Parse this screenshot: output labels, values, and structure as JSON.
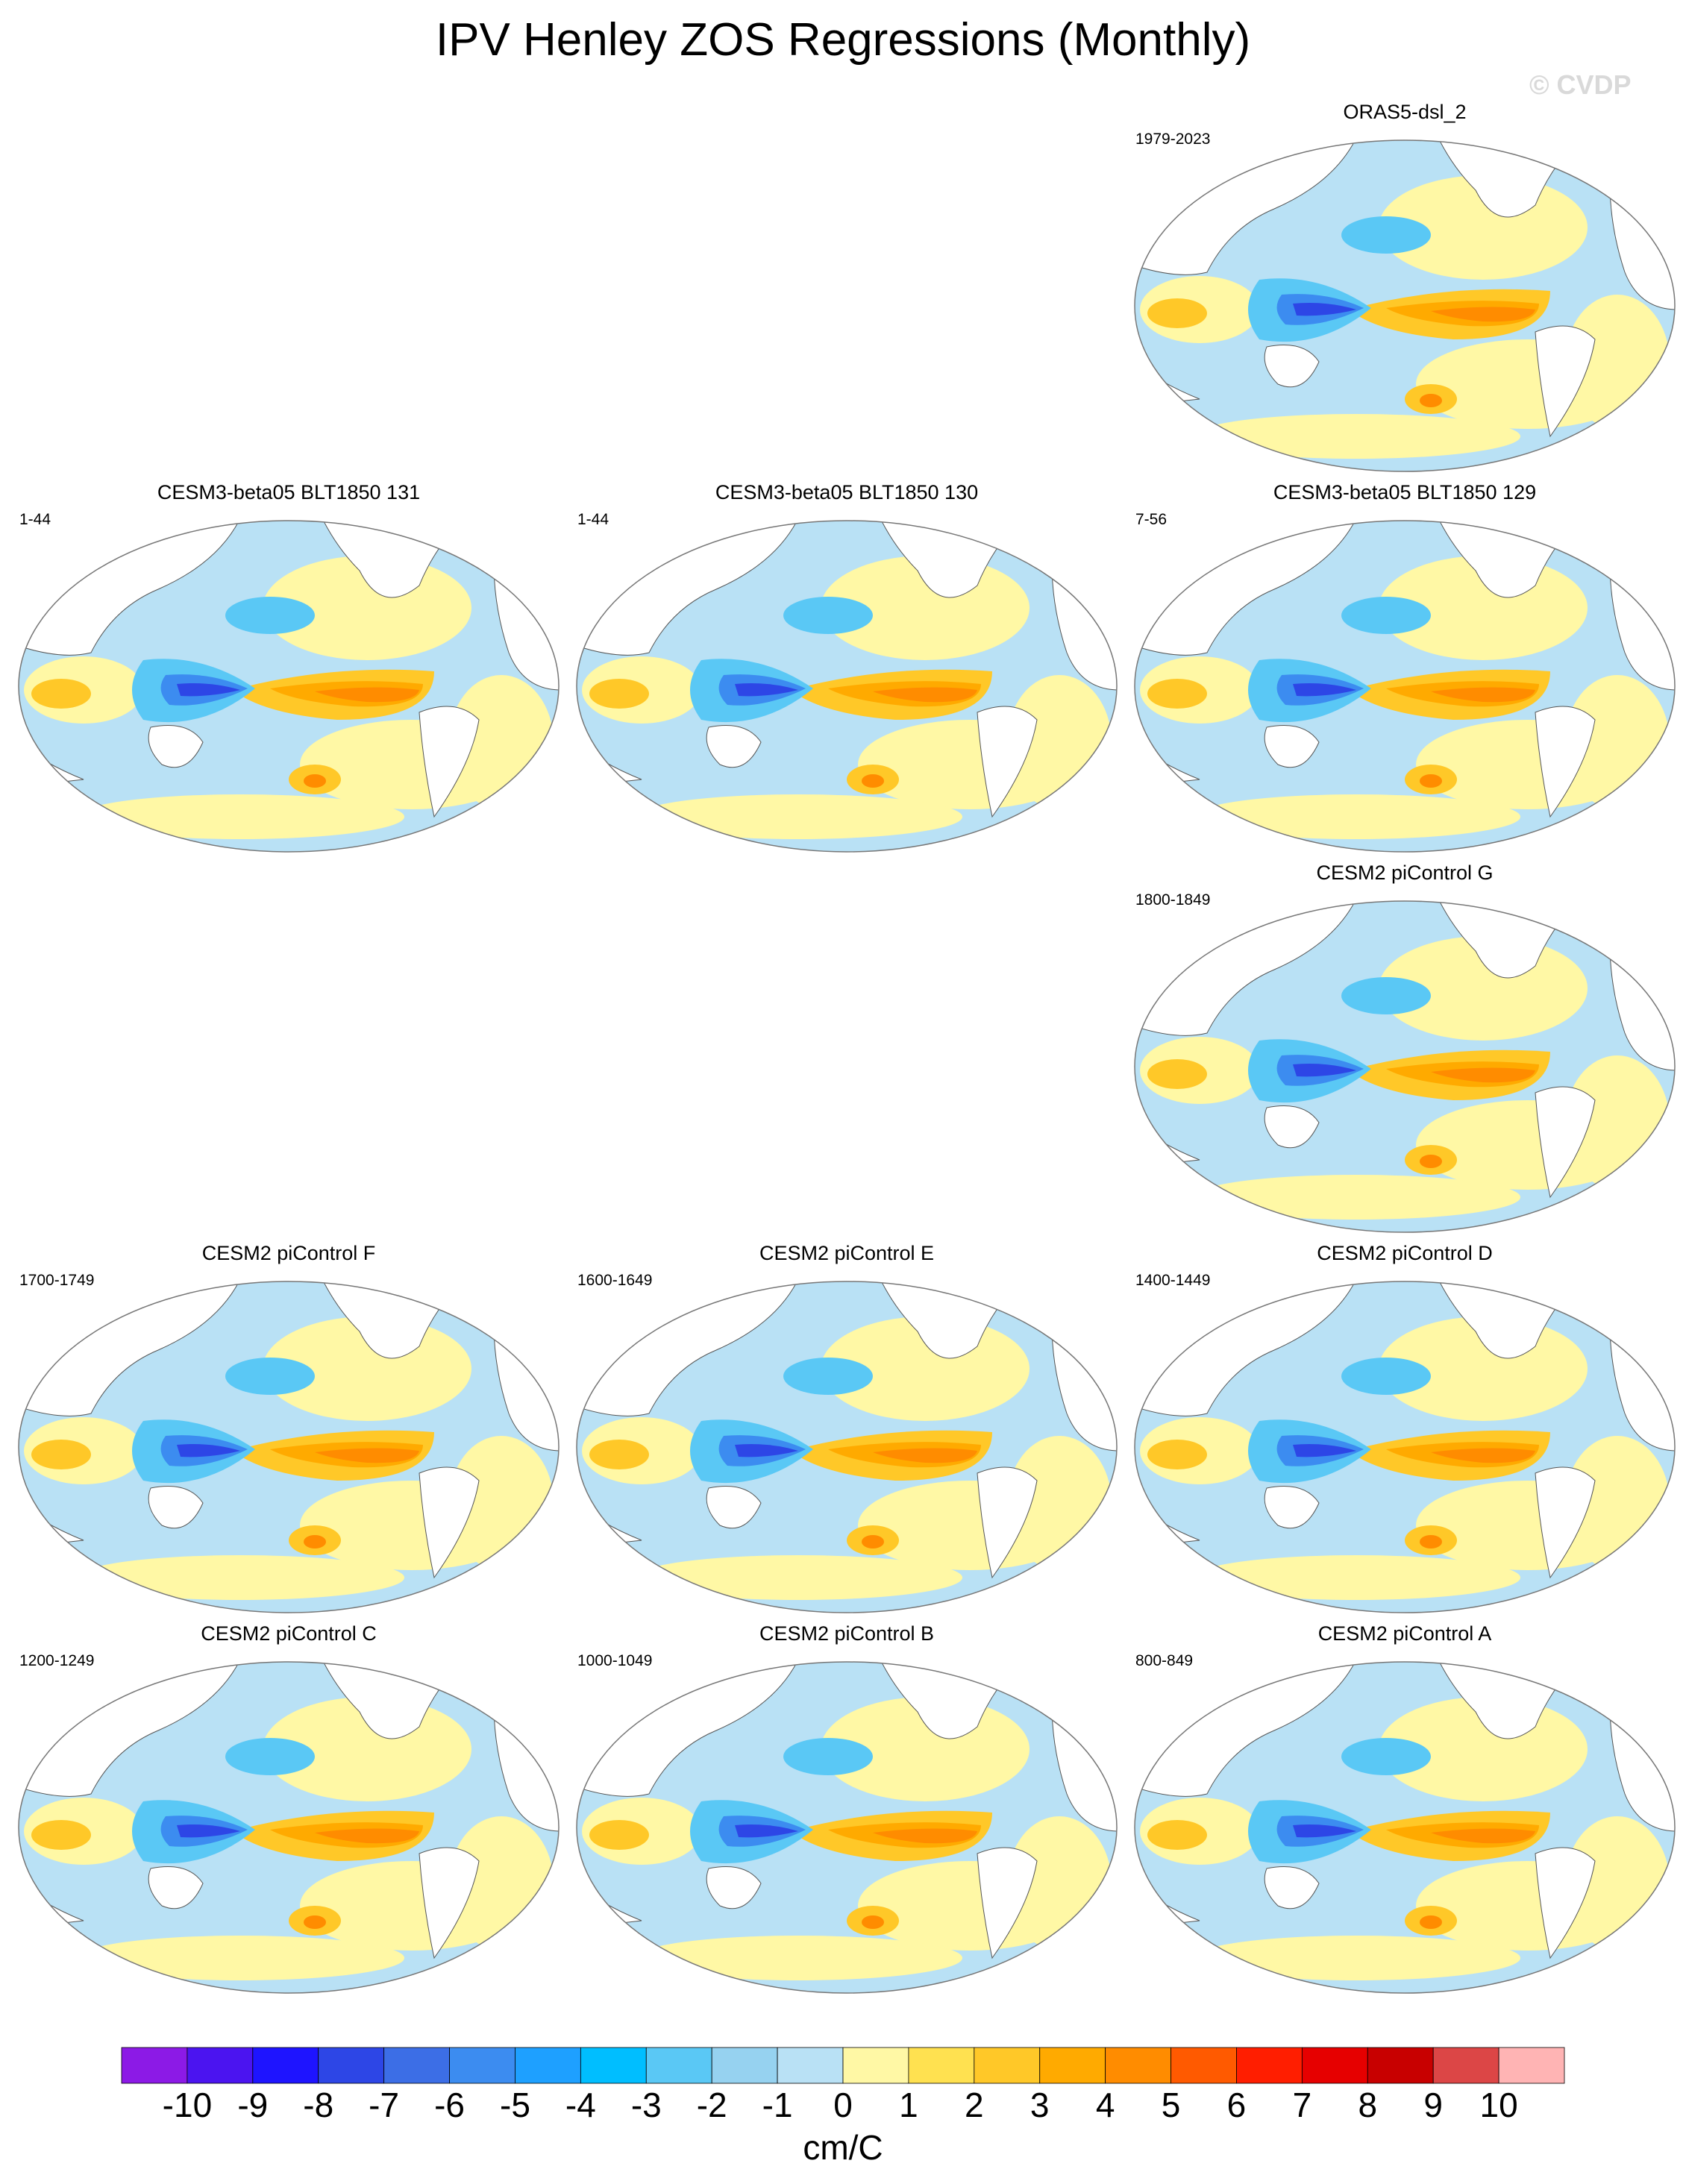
{
  "title": "IPV Henley ZOS Regressions (Monthly)",
  "watermark": "© CVDP",
  "panels": [
    {
      "name": "ORAS5-dsl_2",
      "years": "1979-2023",
      "slot": 2,
      "row": 0
    },
    {
      "name": "CESM3-beta05 BLT1850 131",
      "years": "1-44",
      "slot": 0,
      "row": 1
    },
    {
      "name": "CESM3-beta05 BLT1850 130",
      "years": "1-44",
      "slot": 1,
      "row": 1
    },
    {
      "name": "CESM3-beta05 BLT1850 129",
      "years": "7-56",
      "slot": 2,
      "row": 1
    },
    {
      "name": "CESM2 piControl G",
      "years": "1800-1849",
      "slot": 2,
      "row": 2
    },
    {
      "name": "CESM2 piControl F",
      "years": "1700-1749",
      "slot": 0,
      "row": 3
    },
    {
      "name": "CESM2 piControl E",
      "years": "1600-1649",
      "slot": 1,
      "row": 3
    },
    {
      "name": "CESM2 piControl D",
      "years": "1400-1449",
      "slot": 2,
      "row": 3
    },
    {
      "name": "CESM2 piControl C",
      "years": "1200-1249",
      "slot": 0,
      "row": 4
    },
    {
      "name": "CESM2 piControl B",
      "years": "1000-1049",
      "slot": 1,
      "row": 4
    },
    {
      "name": "CESM2 piControl A",
      "years": "800-849",
      "slot": 2,
      "row": 4
    }
  ],
  "colorbar": {
    "units": "cm/C",
    "ticks": [
      "-10",
      "-9",
      "-8",
      "-7",
      "-6",
      "-5",
      "-4",
      "-3",
      "-2",
      "-1",
      "0",
      "1",
      "2",
      "3",
      "4",
      "5",
      "6",
      "7",
      "8",
      "9",
      "10"
    ],
    "colors": [
      "#8c1ae6",
      "#4b14f0",
      "#1e14ff",
      "#2d46e6",
      "#3c6ee6",
      "#3c8cf0",
      "#1ea0ff",
      "#00beff",
      "#5ac8f5",
      "#96d2f0",
      "#b9e1f5",
      "#fff8a5",
      "#ffe150",
      "#ffc828",
      "#ffaa00",
      "#ff8c00",
      "#ff5a00",
      "#ff1e00",
      "#e60000",
      "#c80000",
      "#dc4646",
      "#ffb4b4"
    ]
  }
}
